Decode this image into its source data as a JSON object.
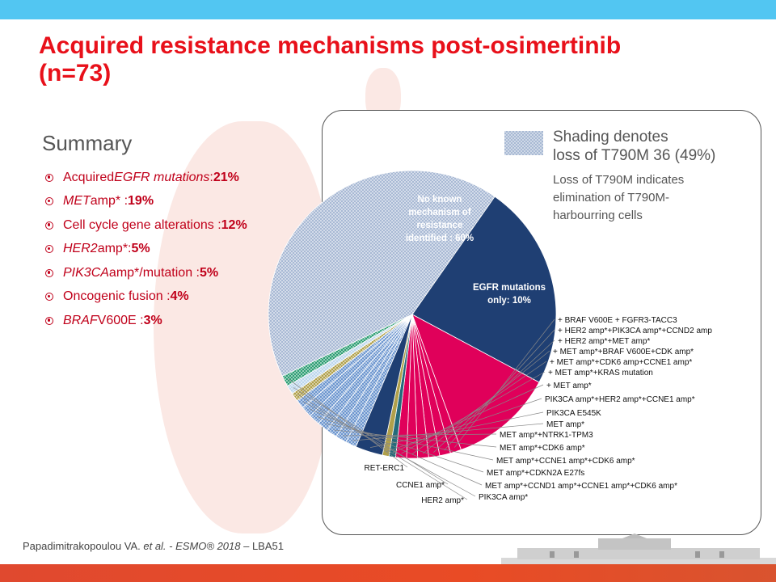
{
  "slide": {
    "title_line1": "Acquired resistance mechanisms post-osimertinib",
    "title_line2": "(n=73)"
  },
  "summary": {
    "heading": "Summary",
    "items": [
      {
        "pre": "Acquired ",
        "ital": "EGFR mutations",
        "post": " : ",
        "val": "21%"
      },
      {
        "pre": "",
        "ital": "MET",
        "post": " amp* : ",
        "val": "19%"
      },
      {
        "pre": "Cell cycle gene alterations : ",
        "ital": "",
        "post": "",
        "val": "12%"
      },
      {
        "pre": "",
        "ital": "HER2",
        "post": " amp*: ",
        "val": "5%"
      },
      {
        "pre": "",
        "ital": "PIK3CA",
        "post": " amp*/mutation : ",
        "val": "5%"
      },
      {
        "pre": "Oncogenic fusion : ",
        "ital": "",
        "post": "",
        "val": "4%"
      },
      {
        "pre": "",
        "ital": "BRAF",
        "post": " V600E : ",
        "val": "3%"
      }
    ]
  },
  "legend": {
    "line1": "Shading denotes",
    "line2": "loss of T790M 36 (49%)",
    "note": "Loss of T790M indicates elimination of T790M-harbourring cells"
  },
  "colors": {
    "accent": "#e8101a",
    "top_bar": "#52c6f2",
    "navy": "#1f3f73",
    "magenta": "#e0005a",
    "shaded_blue": "#a8b9d4",
    "light_blue": "#6d96cf",
    "teal": "#246a7a",
    "olive": "#b0a04b",
    "green_dotted": "#2e9e74",
    "pale_blue": "#bcd6ec"
  },
  "chart_data": {
    "type": "pie",
    "start_angle_deg": -55,
    "direction": "clockwise",
    "inner_labels": [
      {
        "lines": [
          "No known",
          "mechanism of",
          "resistance",
          "identified : 60%"
        ]
      },
      {
        "lines": [
          "EGFR mutations",
          "only: 10%"
        ]
      }
    ],
    "slices": [
      {
        "name": "No known mechanism of resistance identified : 60%",
        "value": 18.8,
        "color": "#1f3f73",
        "shaded": false
      },
      {
        "name": "EGFR mutations only: 10%",
        "value": 9.5,
        "color": "#e0005a",
        "shaded": false
      },
      {
        "name": "+ BRAF V600E + FGFR3-TACC3",
        "value": 1.0,
        "color": "#e0005a",
        "shaded": false
      },
      {
        "name": "+ HER2 amp*+PIK3CA amp*+CCND2 amp",
        "value": 1.0,
        "color": "#e0005a",
        "shaded": false
      },
      {
        "name": "+ HER2 amp*+MET amp*",
        "value": 1.0,
        "color": "#e0005a",
        "shaded": false
      },
      {
        "name": "+ MET amp*+BRAF V600E+CDK amp*",
        "value": 1.0,
        "color": "#e0005a",
        "shaded": false
      },
      {
        "name": "+ MET amp*+CDK6 amp+CCNE1 amp*",
        "value": 1.0,
        "color": "#e0005a",
        "shaded": false
      },
      {
        "name": "+ MET amp*+KRAS mutation",
        "value": 1.0,
        "color": "#e0005a",
        "shaded": false
      },
      {
        "name": "+ MET amp*",
        "value": 0.6,
        "color": "#246a7a",
        "shaded": false
      },
      {
        "name": "PIK3CA amp*+HER2 amp*+CCNE1 amp*",
        "value": 0.6,
        "color": "#b0a04b",
        "shaded": false
      },
      {
        "name": "PIK3CA E545K",
        "value": 2.5,
        "color": "#1f3f73",
        "shaded": false
      },
      {
        "name": "MET amp*",
        "value": 1.0,
        "color": "#6d96cf",
        "shaded": true
      },
      {
        "name": "MET amp*+NTRK1-TPM3",
        "value": 1.0,
        "color": "#6d96cf",
        "shaded": true
      },
      {
        "name": "MET amp*+CDK6 amp*",
        "value": 1.0,
        "color": "#6d96cf",
        "shaded": true
      },
      {
        "name": "MET amp*+CCNE1 amp*+CDK6 amp*",
        "value": 1.0,
        "color": "#6d96cf",
        "shaded": true
      },
      {
        "name": "MET amp*+CDKN2A E27fs",
        "value": 1.0,
        "color": "#6d96cf",
        "shaded": true
      },
      {
        "name": "MET amp*+CCND1 amp*+CCNE1 amp*+CDK6 amp*",
        "value": 1.0,
        "color": "#6d96cf",
        "shaded": true
      },
      {
        "name": "PIK3CA amp*",
        "value": 0.8,
        "color": "#6d96cf",
        "shaded": true
      },
      {
        "name": "HER2 amp*",
        "value": 0.8,
        "color": "#b0a04b",
        "shaded": true
      },
      {
        "name": "CCNE1 amp*",
        "value": 0.8,
        "color": "#bcd6ec",
        "shaded": true
      },
      {
        "name": "RET-ERC1",
        "value": 1.0,
        "color": "#2e9e74",
        "shaded": true
      },
      {
        "name": "",
        "value": 34.0,
        "color": "#a8b9d4",
        "shaded": true
      }
    ]
  },
  "footer": {
    "pre": "Papadimitrakopoulou  VA. ",
    "ital": "et al. - ESMO® 2018",
    "post": " – LBA51"
  }
}
